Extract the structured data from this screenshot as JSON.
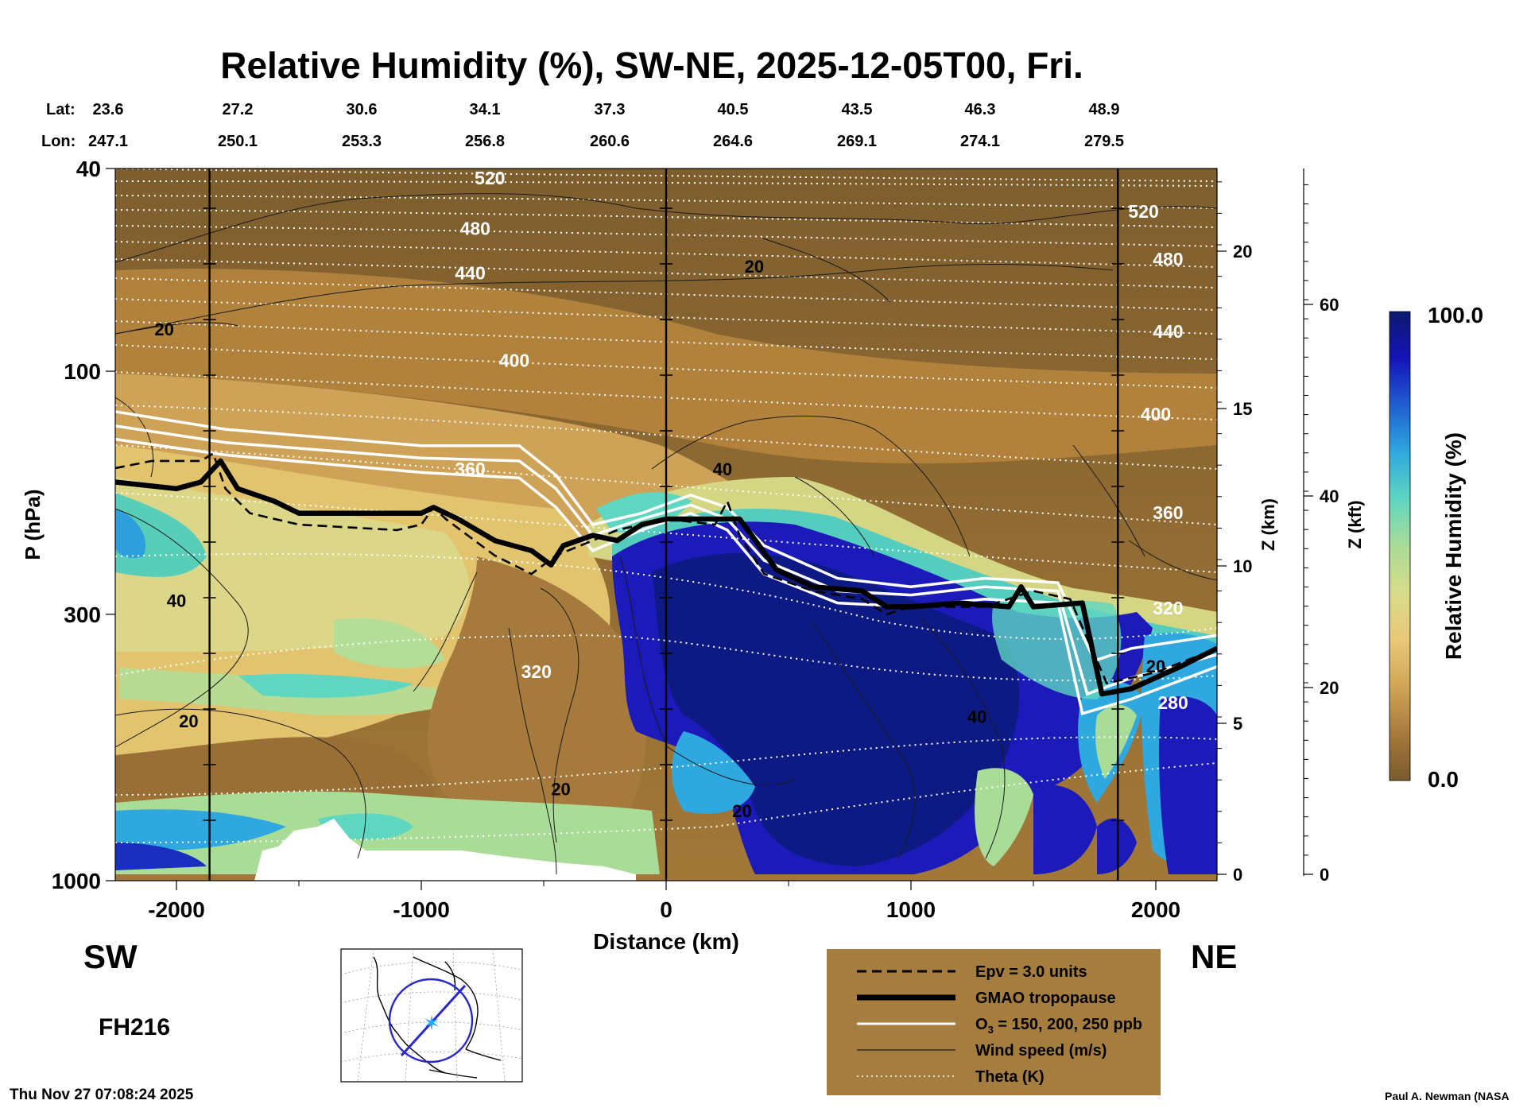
{
  "chart_data": {
    "type": "heatmap",
    "title": "Relative Humidity (%), SW-NE, 2025-12-05T00, Fri.",
    "xlabel": "Distance (km)",
    "ylabel": "P (hPa)",
    "ylabel_right_km": "Z (km)",
    "ylabel_right_kft": "Z (kft)",
    "xlim": [
      -2250,
      2250
    ],
    "ylim": [
      1000,
      40
    ],
    "y_scale": "log",
    "x_ticks": [
      -2000,
      -1000,
      0,
      1000,
      2000
    ],
    "x_tick_labels": [
      "-2000",
      "-1000",
      "0",
      "1000",
      "2000"
    ],
    "y_ticks": [
      40,
      100,
      300,
      1000
    ],
    "y_tick_labels": [
      "40",
      "100",
      "300",
      "1000"
    ],
    "z_km_ticks": [
      "0",
      "5",
      "10",
      "15",
      "20"
    ],
    "z_kft_ticks": [
      "0",
      "20",
      "40",
      "60"
    ],
    "lat_label": "Lat:",
    "lon_label": "Lon:",
    "lat": [
      "23.6",
      "27.2",
      "30.6",
      "34.1",
      "37.3",
      "40.5",
      "43.5",
      "46.3",
      "48.9"
    ],
    "lon": [
      "247.1",
      "250.1",
      "253.3",
      "256.8",
      "260.6",
      "264.6",
      "269.1",
      "274.1",
      "279.5"
    ],
    "left_end": "SW",
    "right_end": "NE",
    "forecast_hour": "FH216",
    "colorbar": {
      "label": "Relative Humidity (%)",
      "max": "100.0",
      "min": "0.0",
      "colors": [
        "#7a5a2c",
        "#a77a3c",
        "#cfa655",
        "#e8c878",
        "#d9dc8a",
        "#a9dc96",
        "#5fd6c0",
        "#2fa8e0",
        "#1f5fd0",
        "#1414b8",
        "#0c1a6e"
      ]
    },
    "series": [
      {
        "name": "Epv = 3.0 units",
        "style": "dashed-black",
        "points": [
          [
            -2250,
            155
          ],
          [
            -2100,
            150
          ],
          [
            -1900,
            150
          ],
          [
            -1850,
            145
          ],
          [
            -1800,
            170
          ],
          [
            -1700,
            190
          ],
          [
            -1500,
            200
          ],
          [
            -1100,
            205
          ],
          [
            -1000,
            200
          ],
          [
            -950,
            185
          ],
          [
            -900,
            195
          ],
          [
            -700,
            230
          ],
          [
            -550,
            250
          ],
          [
            -450,
            230
          ],
          [
            -300,
            215
          ],
          [
            -200,
            205
          ],
          [
            0,
            195
          ],
          [
            200,
            200
          ],
          [
            250,
            180
          ],
          [
            300,
            210
          ],
          [
            400,
            250
          ],
          [
            600,
            270
          ],
          [
            800,
            280
          ],
          [
            900,
            300
          ],
          [
            1000,
            290
          ],
          [
            1300,
            290
          ],
          [
            1500,
            270
          ],
          [
            1650,
            280
          ],
          [
            1800,
            410
          ],
          [
            2000,
            390
          ],
          [
            2250,
            350
          ]
        ]
      },
      {
        "name": "GMAO tropopause",
        "style": "thick-black",
        "points": [
          [
            -2250,
            165
          ],
          [
            -2000,
            170
          ],
          [
            -1900,
            165
          ],
          [
            -1820,
            150
          ],
          [
            -1750,
            170
          ],
          [
            -1600,
            180
          ],
          [
            -1500,
            190
          ],
          [
            -1000,
            190
          ],
          [
            -950,
            185
          ],
          [
            -850,
            195
          ],
          [
            -700,
            215
          ],
          [
            -550,
            225
          ],
          [
            -470,
            240
          ],
          [
            -420,
            220
          ],
          [
            -300,
            210
          ],
          [
            -200,
            215
          ],
          [
            -100,
            200
          ],
          [
            0,
            195
          ],
          [
            300,
            195
          ],
          [
            350,
            210
          ],
          [
            450,
            245
          ],
          [
            600,
            265
          ],
          [
            800,
            270
          ],
          [
            900,
            290
          ],
          [
            1000,
            290
          ],
          [
            1200,
            285
          ],
          [
            1400,
            290
          ],
          [
            1450,
            265
          ],
          [
            1500,
            290
          ],
          [
            1700,
            285
          ],
          [
            1780,
            430
          ],
          [
            1900,
            420
          ],
          [
            2100,
            380
          ],
          [
            2250,
            350
          ]
        ]
      },
      {
        "name": "O3 = 150, 200, 250 ppb",
        "style": "white",
        "lines": [
          [
            [
              -2250,
              120
            ],
            [
              -1800,
              130
            ],
            [
              -1000,
              140
            ],
            [
              -600,
              140
            ],
            [
              -450,
              160
            ],
            [
              -300,
              200
            ],
            [
              -100,
              190
            ],
            [
              100,
              175
            ],
            [
              250,
              185
            ],
            [
              400,
              220
            ],
            [
              700,
              255
            ],
            [
              1000,
              265
            ],
            [
              1300,
              255
            ],
            [
              1600,
              260
            ],
            [
              1750,
              370
            ],
            [
              1900,
              350
            ],
            [
              2250,
              330
            ]
          ],
          [
            [
              -2250,
              128
            ],
            [
              -1800,
              138
            ],
            [
              -1000,
              148
            ],
            [
              -600,
              150
            ],
            [
              -450,
              170
            ],
            [
              -300,
              210
            ],
            [
              -100,
              195
            ],
            [
              100,
              183
            ],
            [
              250,
              195
            ],
            [
              400,
              235
            ],
            [
              700,
              270
            ],
            [
              1000,
              275
            ],
            [
              1300,
              265
            ],
            [
              1600,
              270
            ],
            [
              1720,
              430
            ],
            [
              1900,
              400
            ],
            [
              2250,
              360
            ]
          ],
          [
            [
              -2250,
              136
            ],
            [
              -1800,
              146
            ],
            [
              -1000,
              158
            ],
            [
              -600,
              162
            ],
            [
              -450,
              185
            ],
            [
              -300,
              225
            ],
            [
              -100,
              205
            ],
            [
              100,
              190
            ],
            [
              250,
              205
            ],
            [
              400,
              250
            ],
            [
              700,
              285
            ],
            [
              1000,
              290
            ],
            [
              1300,
              280
            ],
            [
              1600,
              285
            ],
            [
              1700,
              470
            ],
            [
              1900,
              440
            ],
            [
              2250,
              380
            ]
          ]
        ]
      },
      {
        "name": "Wind speed (m/s)",
        "style": "thin-black",
        "contour_labels": [
          {
            "text": "20",
            "x": -2050,
            "p": 85
          },
          {
            "text": "20",
            "x": 360,
            "p": 64
          },
          {
            "text": "40",
            "x": 230,
            "p": 160
          },
          {
            "text": "40",
            "x": -2000,
            "p": 290
          },
          {
            "text": "20",
            "x": -1950,
            "p": 500
          },
          {
            "text": "20",
            "x": -430,
            "p": 680
          },
          {
            "text": "20",
            "x": 310,
            "p": 750
          },
          {
            "text": "40",
            "x": 1270,
            "p": 490
          },
          {
            "text": "20",
            "x": 2000,
            "p": 390
          }
        ]
      },
      {
        "name": "Theta (K)",
        "style": "dotted-white",
        "contour_labels": [
          {
            "text": "520",
            "x": -720,
            "p": 43
          },
          {
            "text": "480",
            "x": -780,
            "p": 54
          },
          {
            "text": "440",
            "x": -800,
            "p": 66
          },
          {
            "text": "400",
            "x": -620,
            "p": 98
          },
          {
            "text": "360",
            "x": -800,
            "p": 160
          },
          {
            "text": "320",
            "x": -530,
            "p": 400
          },
          {
            "text": "520",
            "x": 1950,
            "p": 50
          },
          {
            "text": "480",
            "x": 2050,
            "p": 62
          },
          {
            "text": "440",
            "x": 2050,
            "p": 86
          },
          {
            "text": "400",
            "x": 2000,
            "p": 125
          },
          {
            "text": "360",
            "x": 2050,
            "p": 195
          },
          {
            "text": "320",
            "x": 2050,
            "p": 300
          },
          {
            "text": "280",
            "x": 2070,
            "p": 460
          }
        ]
      }
    ]
  },
  "legend": {
    "items": [
      {
        "style": "dashed",
        "label": "Epv = 3.0 units"
      },
      {
        "style": "thick",
        "label": "GMAO tropopause"
      },
      {
        "style": "white",
        "label": "O",
        "sub": "3",
        "label_rest": " = 150, 200, 250 ppb"
      },
      {
        "style": "thin",
        "label": "Wind speed (m/s)"
      },
      {
        "style": "dotted",
        "label": "Theta (K)"
      }
    ]
  },
  "footer": {
    "timestamp": "Thu Nov 27 07:08:24 2025",
    "credit": "Paul A. Newman (NASA"
  }
}
